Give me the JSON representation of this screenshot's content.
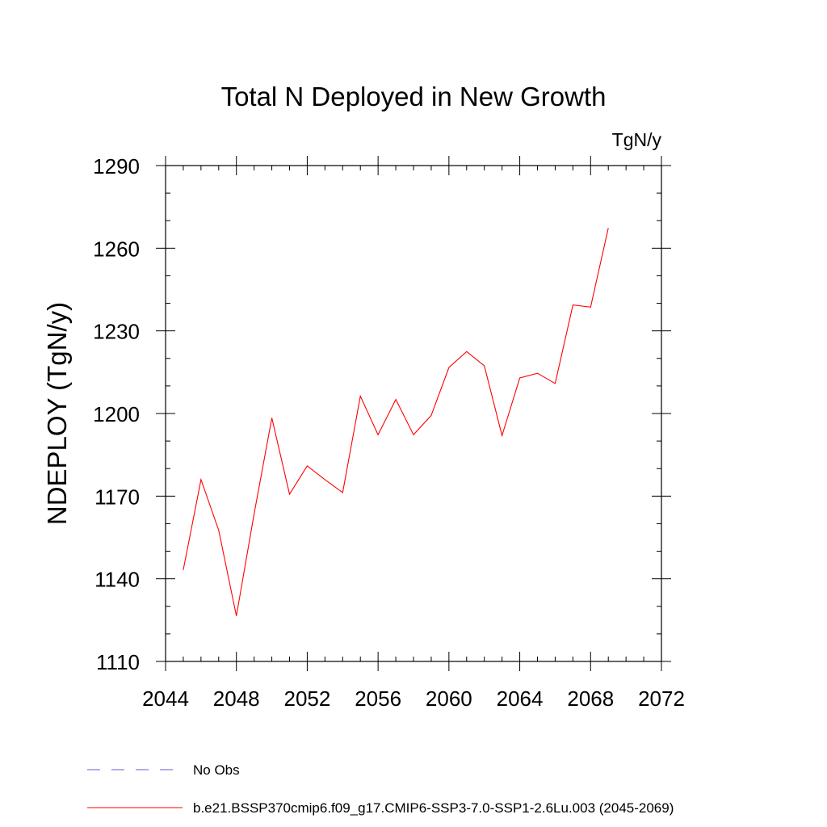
{
  "chart_data": {
    "type": "line",
    "title": "Total N Deployed in New Growth",
    "units": "TgN/y",
    "ylabel": "NDEPLOY  (TgN/y)",
    "xlabel": "",
    "xlim": [
      2044,
      2072
    ],
    "ylim": [
      1110,
      1290
    ],
    "x_ticks": [
      "2044",
      "2048",
      "2052",
      "2056",
      "2060",
      "2064",
      "2068",
      "2072"
    ],
    "y_ticks": [
      "1110",
      "1140",
      "1170",
      "1200",
      "1230",
      "1260",
      "1290"
    ],
    "x_tick_values": [
      2044,
      2048,
      2052,
      2056,
      2060,
      2064,
      2068,
      2072
    ],
    "y_tick_values": [
      1110,
      1140,
      1170,
      1200,
      1230,
      1260,
      1290
    ],
    "x_minor_step": 1,
    "y_minor_step": 10,
    "grid": false,
    "legend_position": "bottom-left, below plot",
    "series": [
      {
        "name": "b.e21.BSSP370cmip6.f09_g17.CMIP6-SSP3-7.0-SSP1-2.6Lu.003 (2045-2069)",
        "color": "#ff0000",
        "style": "solid",
        "x": [
          2045,
          2046,
          2047,
          2048,
          2049,
          2050,
          2051,
          2052,
          2053,
          2054,
          2055,
          2056,
          2057,
          2058,
          2059,
          2060,
          2061,
          2062,
          2063,
          2064,
          2065,
          2066,
          2067,
          2068,
          2069
        ],
        "y": [
          1143.2,
          1176.0,
          1157.6,
          1126.5,
          1163.5,
          1198.4,
          1170.7,
          1181.0,
          1176.0,
          1171.3,
          1206.3,
          1192.3,
          1205.1,
          1192.3,
          1199.3,
          1216.7,
          1222.5,
          1217.3,
          1192.0,
          1212.9,
          1214.6,
          1210.9,
          1239.4,
          1238.6,
          1267.3
        ]
      }
    ],
    "legend": [
      {
        "label": "No Obs",
        "color": "#6a5acd",
        "style": "dashed"
      },
      {
        "label": "b.e21.BSSP370cmip6.f09_g17.CMIP6-SSP3-7.0-SSP1-2.6Lu.003 (2045-2069)",
        "color": "#ff0000",
        "style": "solid"
      }
    ]
  }
}
